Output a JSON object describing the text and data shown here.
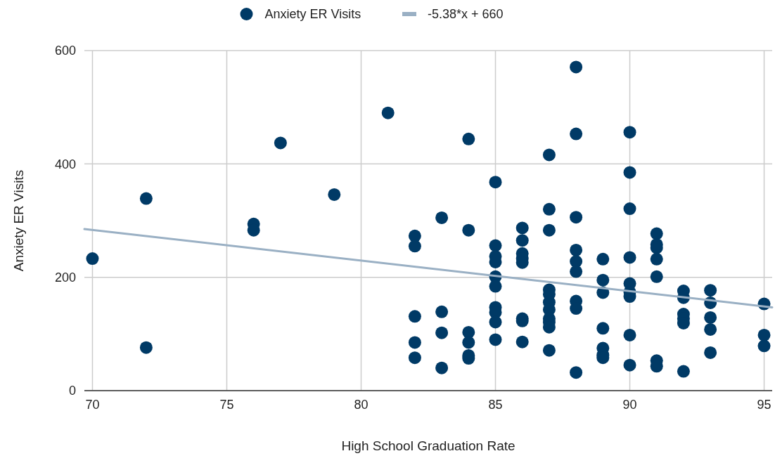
{
  "chart_data": {
    "type": "scatter",
    "xlabel": "High School Graduation Rate",
    "ylabel": "Anxiety ER Visits",
    "xlim": [
      69.7,
      95.3
    ],
    "xticks": [
      70,
      75,
      80,
      85,
      90,
      95
    ],
    "ylim": [
      0,
      600
    ],
    "yticks": [
      0,
      200,
      400,
      600
    ],
    "grid": true,
    "legend": "top",
    "marker": "circle",
    "series": [
      {
        "name": "Anxiety ER Visits",
        "color": "#003a66",
        "x": [
          70,
          72,
          72,
          76,
          76,
          77,
          79,
          81,
          82,
          82,
          82,
          82,
          82,
          83,
          83,
          83,
          83,
          84,
          84,
          84,
          84,
          84,
          84,
          85,
          85,
          85,
          85,
          85,
          85,
          85,
          85,
          85,
          85,
          86,
          86,
          86,
          86,
          86,
          86,
          86,
          86,
          87,
          87,
          87,
          87,
          87,
          87,
          87,
          87,
          87,
          87,
          87,
          88,
          88,
          88,
          88,
          88,
          88,
          88,
          88,
          88,
          89,
          89,
          89,
          89,
          89,
          89,
          89,
          90,
          90,
          90,
          90,
          90,
          90,
          90,
          90,
          90,
          91,
          91,
          91,
          91,
          91,
          91,
          91,
          92,
          92,
          92,
          92,
          92,
          92,
          93,
          93,
          93,
          93,
          93,
          95,
          95,
          95
        ],
        "values": [
          233,
          339,
          76,
          294,
          283,
          437,
          346,
          490,
          273,
          255,
          131,
          85,
          58,
          305,
          139,
          102,
          40,
          444,
          283,
          103,
          85,
          62,
          57,
          368,
          256,
          237,
          227,
          201,
          184,
          147,
          138,
          121,
          90,
          287,
          265,
          242,
          233,
          226,
          127,
          123,
          86,
          416,
          320,
          283,
          178,
          170,
          156,
          143,
          127,
          121,
          112,
          71,
          571,
          453,
          306,
          248,
          228,
          210,
          158,
          145,
          32,
          232,
          195,
          173,
          110,
          75,
          63,
          58,
          456,
          385,
          321,
          235,
          189,
          174,
          166,
          98,
          45,
          277,
          258,
          252,
          232,
          201,
          53,
          43,
          176,
          164,
          135,
          127,
          119,
          34,
          177,
          155,
          129,
          108,
          67,
          153,
          98,
          79
        ]
      },
      {
        "name": "-5.38*x + 660",
        "type": "line",
        "color": "#9ab0c4",
        "marker": "none",
        "line_style": "solid",
        "x": [
          69.7,
          95.3
        ],
        "values": [
          285,
          147
        ]
      }
    ]
  }
}
